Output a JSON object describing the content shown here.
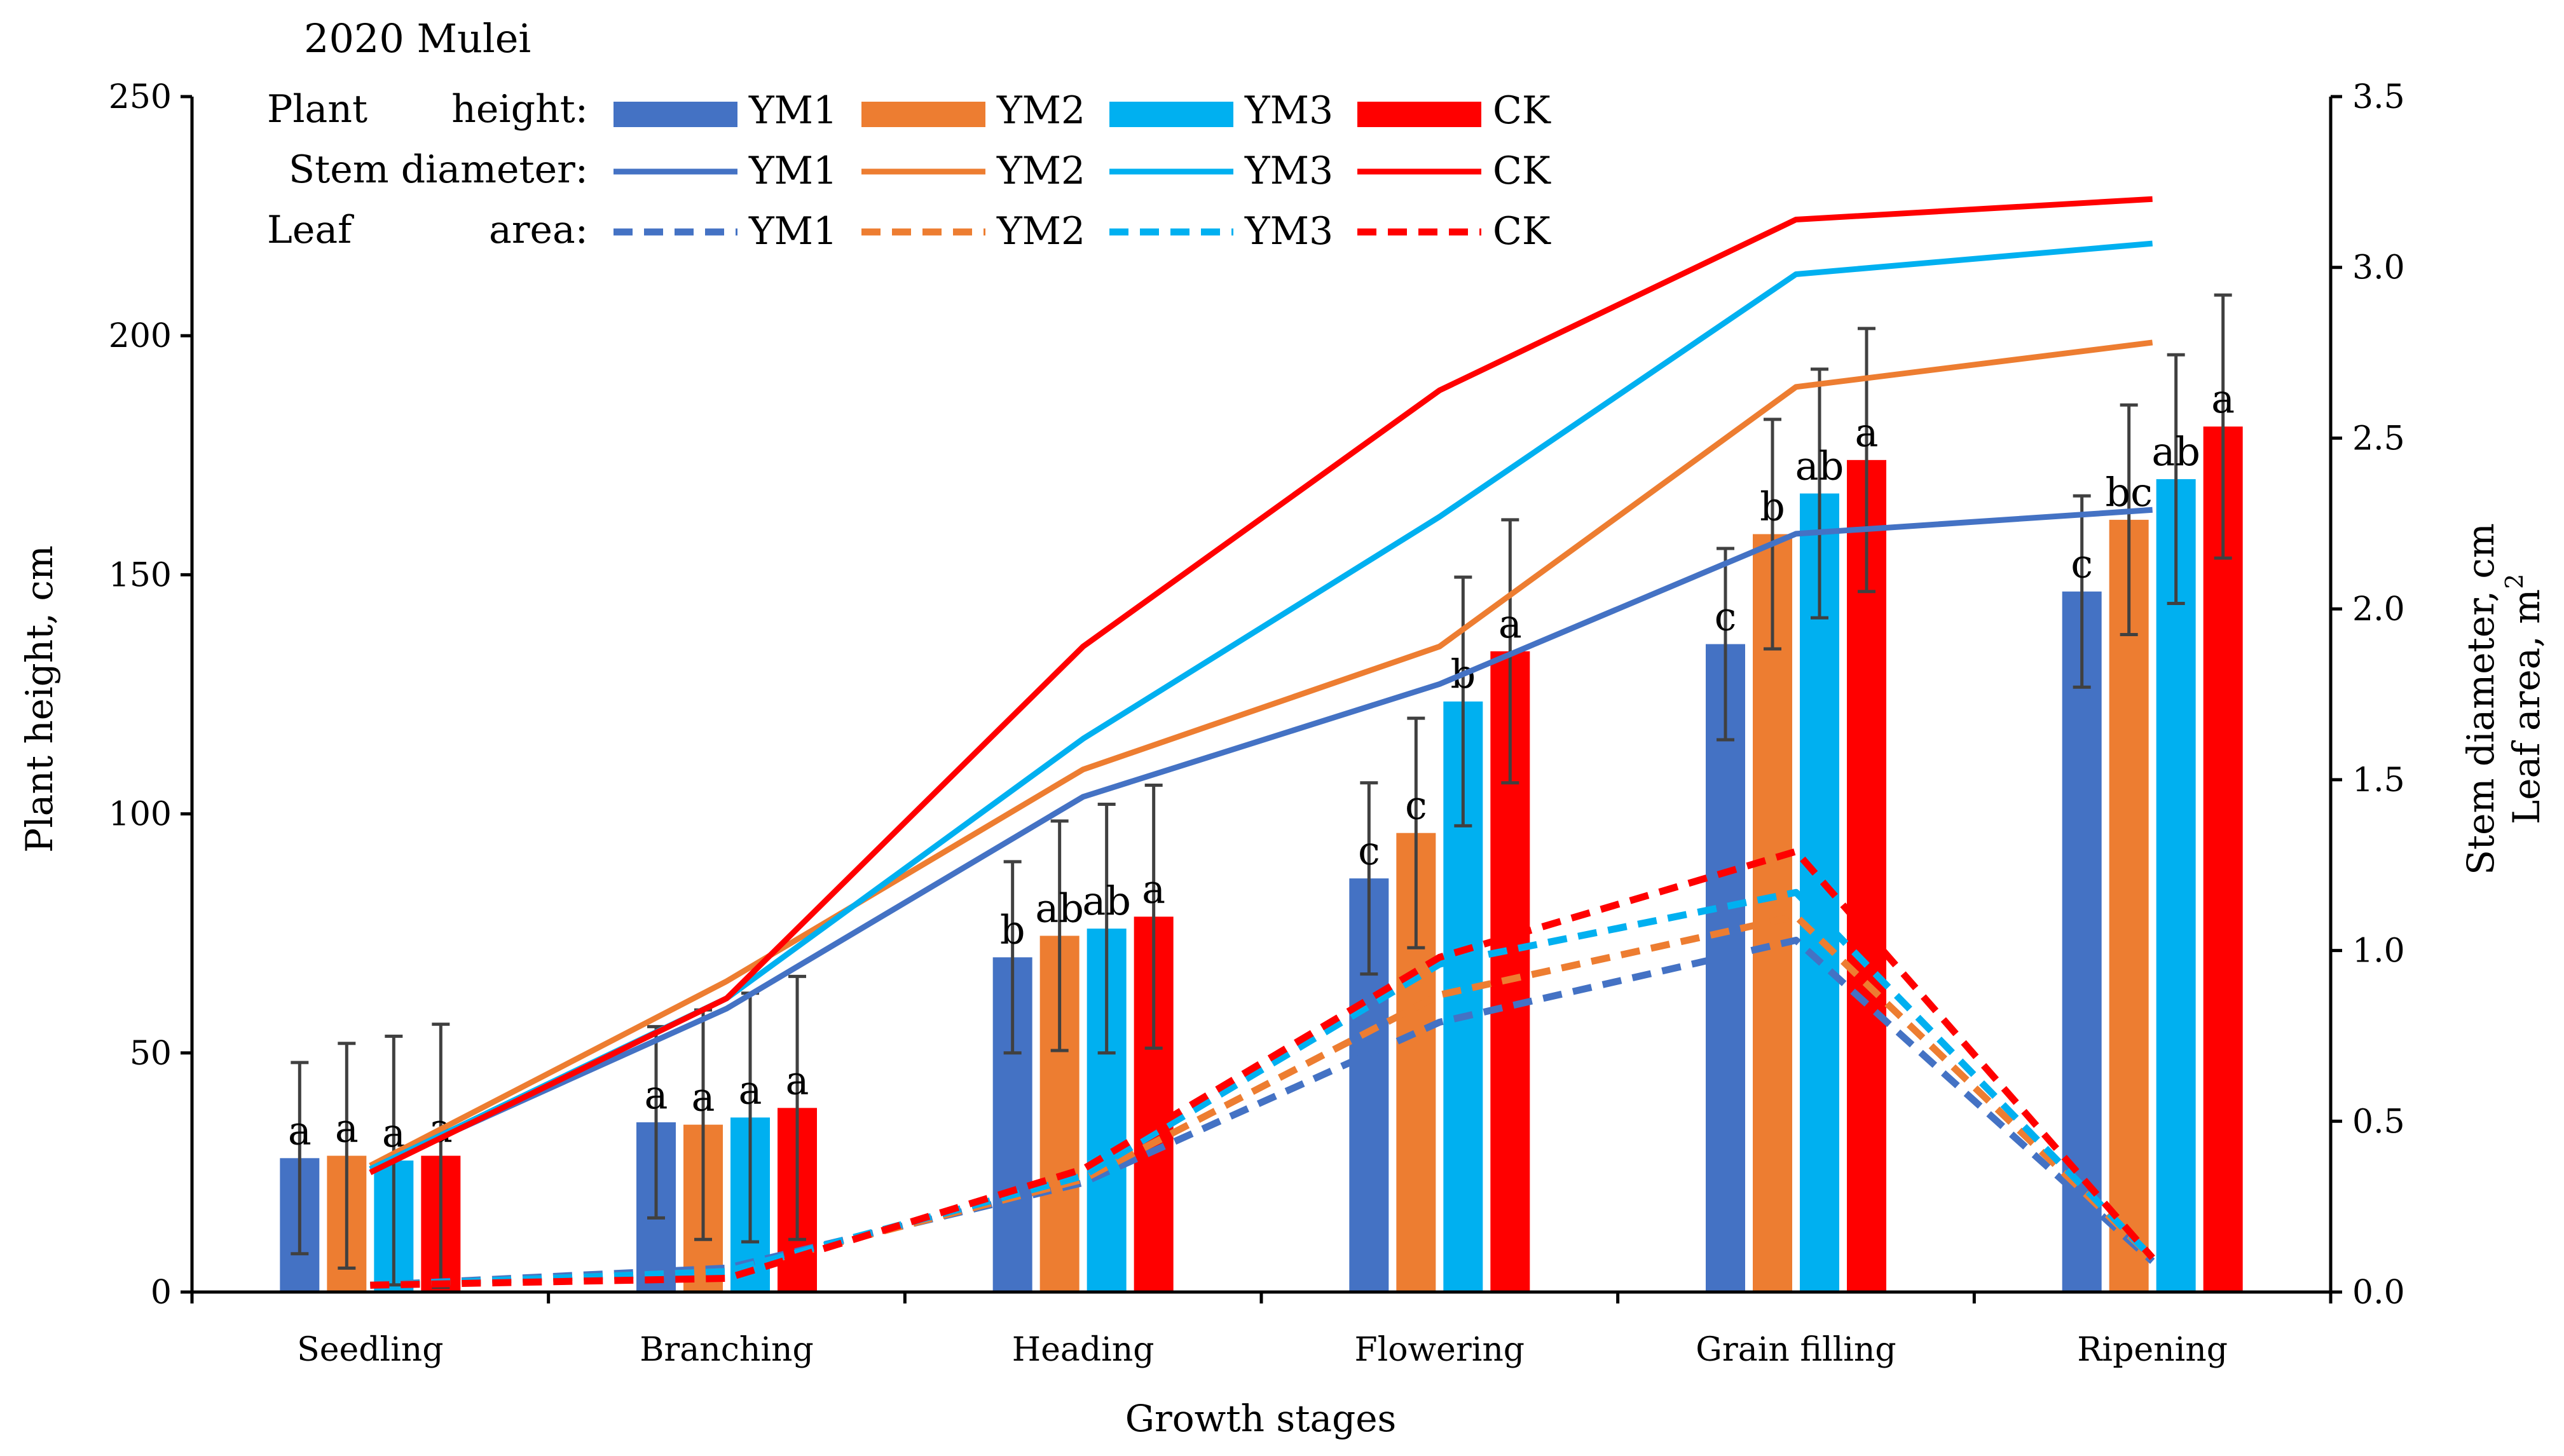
{
  "chart_data": {
    "type": "bar",
    "title": "2020  Mulei",
    "xlabel": "Growth stages",
    "ylabel": "Plant height,   cm",
    "y2label_line1": "Stem diameter, cm",
    "y2label_line2": "Leaf area, m",
    "y2label_sup": "2",
    "ylim": [
      0,
      250
    ],
    "y2lim": [
      0,
      3.5
    ],
    "yticks": [
      "0",
      "50",
      "100",
      "150",
      "200",
      "250"
    ],
    "y2ticks": [
      "0.0",
      "0.5",
      "1.0",
      "1.5",
      "2.0",
      "2.5",
      "3.0",
      "3.5"
    ],
    "categories": [
      "Seedling",
      "Branching",
      "Heading",
      "Flowering",
      "Grain filling",
      "Ripening"
    ],
    "legend": {
      "row_plant_a": "Plant",
      "row_plant_b": "height:",
      "row_stem": "Stem diameter:",
      "row_leaf_a": "Leaf",
      "row_leaf_b": "area:"
    },
    "colors": {
      "YM1": "#4472c4",
      "YM2": "#ed7d31",
      "YM3": "#00b0f0",
      "CK": "#ff0000"
    },
    "plant_height": [
      {
        "name": "YM1",
        "values": [
          28,
          35.5,
          70,
          86.5,
          135.5,
          146.5
        ],
        "errors": [
          20,
          20,
          20,
          20,
          20,
          20
        ],
        "letters": [
          "a",
          "a",
          "b",
          "c",
          "c",
          "c"
        ]
      },
      {
        "name": "YM2",
        "values": [
          28.5,
          35,
          74.5,
          96,
          158.5,
          161.5
        ],
        "errors": [
          23.5,
          24,
          24,
          24,
          24,
          24
        ],
        "letters": [
          "a",
          "a",
          "ab",
          "c",
          "b",
          "bc"
        ]
      },
      {
        "name": "YM3",
        "values": [
          27.5,
          36.5,
          76,
          123.5,
          167,
          170
        ],
        "errors": [
          26,
          26,
          26,
          26,
          26,
          26
        ],
        "letters": [
          "a",
          "a",
          "ab",
          "b",
          "ab",
          "ab"
        ]
      },
      {
        "name": "CK",
        "values": [
          28.5,
          38.5,
          78.5,
          134,
          174,
          181
        ],
        "errors": [
          27.5,
          27.5,
          27.5,
          27.5,
          27.5,
          27.5
        ],
        "letters": [
          "a",
          "a",
          "a",
          "a",
          "a",
          "a"
        ]
      }
    ],
    "stem_diameter": [
      {
        "name": "YM1",
        "values": [
          0.36,
          0.83,
          1.45,
          1.78,
          2.22,
          2.29
        ]
      },
      {
        "name": "YM2",
        "values": [
          0.37,
          0.91,
          1.53,
          1.89,
          2.65,
          2.78
        ]
      },
      {
        "name": "YM3",
        "values": [
          0.36,
          0.86,
          1.62,
          2.27,
          2.98,
          3.07
        ]
      },
      {
        "name": "CK",
        "values": [
          0.35,
          0.86,
          1.89,
          2.64,
          3.14,
          3.2
        ]
      }
    ],
    "leaf_area": [
      {
        "name": "YM1",
        "values": [
          0.02,
          0.07,
          0.32,
          0.79,
          1.03,
          0.09
        ]
      },
      {
        "name": "YM2",
        "values": [
          0.02,
          0.06,
          0.33,
          0.87,
          1.1,
          0.1
        ]
      },
      {
        "name": "YM3",
        "values": [
          0.02,
          0.06,
          0.34,
          0.96,
          1.17,
          0.1
        ]
      },
      {
        "name": "CK",
        "values": [
          0.02,
          0.04,
          0.36,
          0.98,
          1.29,
          0.1
        ]
      }
    ]
  }
}
